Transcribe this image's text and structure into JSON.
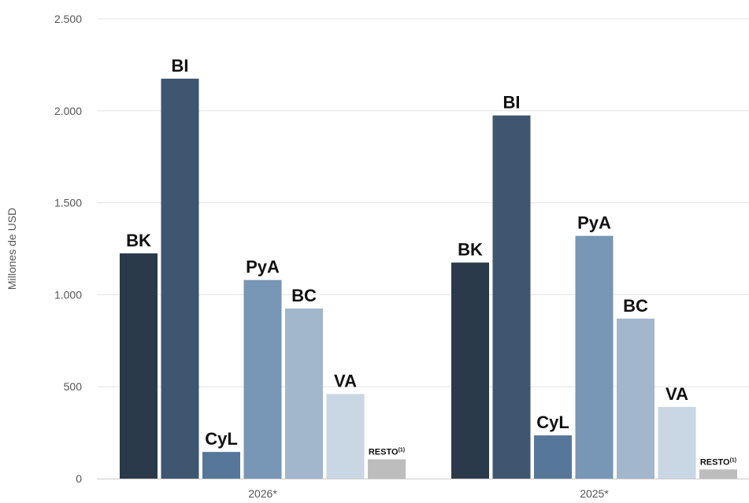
{
  "chart_data": {
    "type": "bar",
    "ylabel": "Millones de USD",
    "ylim": [
      0,
      2500
    ],
    "yticks": [
      0,
      500,
      1000,
      1500,
      2000,
      2500
    ],
    "ytick_labels": [
      "0",
      "500",
      "1.000",
      "1.500",
      "2.000",
      "2.500"
    ],
    "categories": [
      "2026*",
      "2025*"
    ],
    "grid": true,
    "series": [
      {
        "name": "BK",
        "color": "#2b3a4b",
        "values": [
          1225,
          1175
        ]
      },
      {
        "name": "BI",
        "color": "#3e566f",
        "values": [
          2175,
          1975
        ]
      },
      {
        "name": "CyL",
        "color": "#56779a",
        "values": [
          145,
          235
        ]
      },
      {
        "name": "PyA",
        "color": "#7896b5",
        "values": [
          1080,
          1320
        ]
      },
      {
        "name": "BC",
        "color": "#a2b6cc",
        "values": [
          925,
          870
        ]
      },
      {
        "name": "VA",
        "color": "#c9d6e3",
        "values": [
          460,
          390
        ]
      },
      {
        "name": "RESTO",
        "label_superscript": "(1)",
        "color": "#bdbdbd",
        "values": [
          105,
          50
        ]
      }
    ]
  }
}
